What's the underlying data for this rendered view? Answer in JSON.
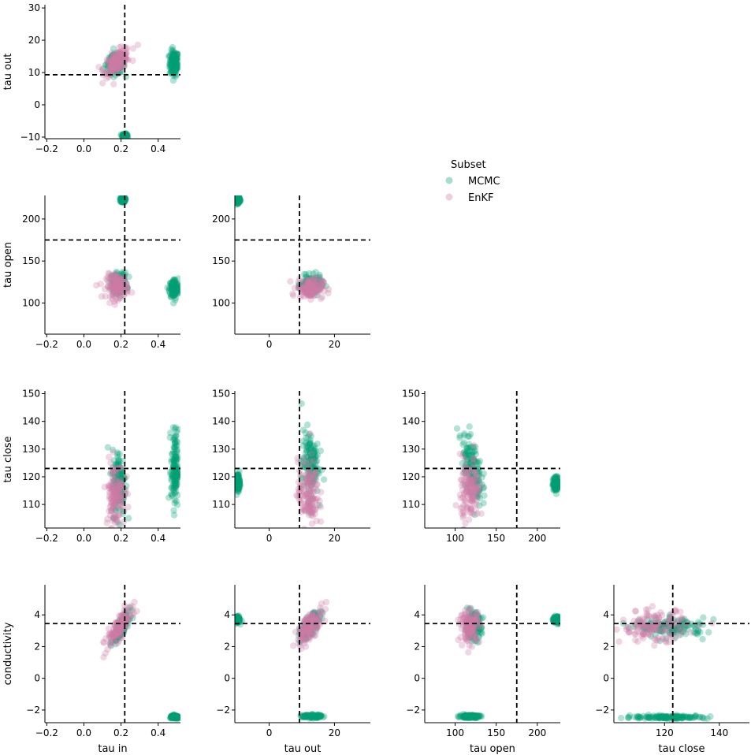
{
  "legend": {
    "title": "Subset",
    "entries": [
      {
        "label": "MCMC",
        "color": "#009E73"
      },
      {
        "label": "EnKF",
        "color": "#CC79A7"
      }
    ],
    "placement": "center"
  },
  "chart_data": [
    {
      "type": "scatter",
      "xlabel": "",
      "ylabel": "tau out",
      "xlim": [
        -0.21,
        0.52
      ],
      "ylim": [
        -10.5,
        31
      ],
      "xticks": [
        -0.2,
        0.0,
        0.2,
        0.4
      ],
      "yticks": [
        -10,
        0,
        10,
        20,
        30
      ],
      "xticklabels": [
        "−0.2",
        "0.0",
        "0.2",
        "0.4"
      ],
      "yticklabels": [
        "−10",
        "0",
        "10",
        "20",
        "30"
      ],
      "ref_x": 0.22,
      "ref_y": 9.3,
      "series": [
        {
          "name": "MCMC",
          "clusters": [
            {
              "cx": 0.485,
              "cy": 12.8,
              "sx": 0.012,
              "sy": 2.0
            },
            {
              "cx": 0.22,
              "cy": -9.6,
              "sx": 0.006,
              "sy": 0.3
            },
            {
              "cx": 0.17,
              "cy": 12.5,
              "sx": 0.025,
              "sy": 1.5
            }
          ]
        },
        {
          "name": "EnKF",
          "clusters": [
            {
              "cx": 0.18,
              "cy": 13.5,
              "sx": 0.035,
              "sy": 2.0,
              "corr": 0.6
            }
          ]
        }
      ]
    },
    {
      "type": "scatter",
      "xlabel": "",
      "ylabel": "tau open",
      "xlim": [
        -0.21,
        0.52
      ],
      "ylim": [
        63,
        228
      ],
      "xticks": [
        -0.2,
        0.0,
        0.2,
        0.4
      ],
      "yticks": [
        100,
        150,
        200
      ],
      "xticklabels": [
        "−0.2",
        "0.0",
        "0.2",
        "0.4"
      ],
      "yticklabels": [
        "100",
        "150",
        "200"
      ],
      "ref_x": 0.22,
      "ref_y": 175,
      "series": [
        {
          "name": "MCMC",
          "clusters": [
            {
              "cx": 0.485,
              "cy": 117,
              "sx": 0.012,
              "sy": 6
            },
            {
              "cx": 0.21,
              "cy": 223,
              "sx": 0.006,
              "sy": 1.5
            },
            {
              "cx": 0.19,
              "cy": 124,
              "sx": 0.02,
              "sy": 6
            }
          ]
        },
        {
          "name": "EnKF",
          "clusters": [
            {
              "cx": 0.18,
              "cy": 120,
              "sx": 0.03,
              "sy": 7
            }
          ]
        }
      ]
    },
    {
      "type": "scatter",
      "xlabel": "",
      "ylabel": "",
      "xlim": [
        -10.5,
        31
      ],
      "ylim": [
        63,
        228
      ],
      "xticks": [
        0,
        20
      ],
      "yticks": [
        100,
        150,
        200
      ],
      "xticklabels": [
        "0",
        "20"
      ],
      "yticklabels": [
        "100",
        "150",
        "200"
      ],
      "ref_x": 9.3,
      "ref_y": 175,
      "series": [
        {
          "name": "MCMC",
          "clusters": [
            {
              "cx": -9.6,
              "cy": 223,
              "sx": 0.3,
              "sy": 2
            },
            {
              "cx": 13,
              "cy": 122,
              "sx": 1.5,
              "sy": 5
            }
          ]
        },
        {
          "name": "EnKF",
          "clusters": [
            {
              "cx": 12.5,
              "cy": 118,
              "sx": 2.0,
              "sy": 6
            }
          ]
        }
      ]
    },
    {
      "type": "scatter",
      "xlabel": "",
      "ylabel": "tau close",
      "xlim": [
        -0.21,
        0.52
      ],
      "ylim": [
        101.5,
        151
      ],
      "xticks": [
        -0.2,
        0.0,
        0.2,
        0.4
      ],
      "yticks": [
        110,
        120,
        130,
        140,
        150
      ],
      "xticklabels": [
        "−0.2",
        "0.0",
        "0.2",
        "0.4"
      ],
      "yticklabels": [
        "110",
        "120",
        "130",
        "140",
        "150"
      ],
      "ref_x": 0.22,
      "ref_y": 123,
      "series": [
        {
          "name": "MCMC",
          "clusters": [
            {
              "cx": 0.49,
              "cy": 123,
              "sx": 0.01,
              "sy": 7
            },
            {
              "cx": 0.19,
              "cy": 118,
              "sx": 0.018,
              "sy": 6
            }
          ]
        },
        {
          "name": "EnKF",
          "clusters": [
            {
              "cx": 0.17,
              "cy": 114,
              "sx": 0.025,
              "sy": 6
            }
          ]
        }
      ]
    },
    {
      "type": "scatter",
      "xlabel": "",
      "ylabel": "",
      "xlim": [
        -10.5,
        31
      ],
      "ylim": [
        101.5,
        151
      ],
      "xticks": [
        0,
        20
      ],
      "yticks": [
        110,
        120,
        130,
        140,
        150
      ],
      "xticklabels": [
        "0",
        "20"
      ],
      "yticklabels": [
        "110",
        "120",
        "130",
        "140",
        "150"
      ],
      "ref_x": 9.3,
      "ref_y": 123,
      "series": [
        {
          "name": "MCMC",
          "clusters": [
            {
              "cx": -9.6,
              "cy": 118,
              "sx": 0.3,
              "sy": 1.5
            },
            {
              "cx": 12.5,
              "cy": 125,
              "sx": 1.3,
              "sy": 6
            }
          ]
        },
        {
          "name": "EnKF",
          "clusters": [
            {
              "cx": 12,
              "cy": 114,
              "sx": 1.6,
              "sy": 6
            }
          ]
        }
      ]
    },
    {
      "type": "scatter",
      "xlabel": "",
      "ylabel": "",
      "xlim": [
        63,
        228
      ],
      "ylim": [
        101.5,
        151
      ],
      "xticks": [
        100,
        150,
        200
      ],
      "yticks": [
        110,
        120,
        130,
        140,
        150
      ],
      "xticklabels": [
        "100",
        "150",
        "200"
      ],
      "yticklabels": [
        "110",
        "120",
        "130",
        "140",
        "150"
      ],
      "ref_x": 175,
      "ref_y": 123,
      "series": [
        {
          "name": "MCMC",
          "clusters": [
            {
              "cx": 223,
              "cy": 117.5,
              "sx": 2,
              "sy": 1.2
            },
            {
              "cx": 120,
              "cy": 124,
              "sx": 6,
              "sy": 6,
              "corr": -0.5
            }
          ]
        },
        {
          "name": "EnKF",
          "clusters": [
            {
              "cx": 118,
              "cy": 115,
              "sx": 6,
              "sy": 6
            }
          ]
        }
      ]
    },
    {
      "type": "scatter",
      "xlabel": "tau in",
      "ylabel": "conductivity",
      "xlim": [
        -0.21,
        0.52
      ],
      "ylim": [
        -2.8,
        5.9
      ],
      "xticks": [
        -0.2,
        0.0,
        0.2,
        0.4
      ],
      "yticks": [
        -2,
        0,
        2,
        4
      ],
      "xticklabels": [
        "−0.2",
        "0.0",
        "0.2",
        "0.4"
      ],
      "yticklabels": [
        "−2",
        "0",
        "2",
        "4"
      ],
      "ref_x": 0.22,
      "ref_y": 3.45,
      "series": [
        {
          "name": "MCMC",
          "clusters": [
            {
              "cx": 0.49,
              "cy": -2.45,
              "sx": 0.012,
              "sy": 0.05
            },
            {
              "cx": 0.2,
              "cy": 3.2,
              "sx": 0.02,
              "sy": 0.4,
              "corr": 0.8
            }
          ]
        },
        {
          "name": "EnKF",
          "clusters": [
            {
              "cx": 0.19,
              "cy": 3.2,
              "sx": 0.035,
              "sy": 0.6,
              "corr": 0.8
            }
          ]
        }
      ]
    },
    {
      "type": "scatter",
      "xlabel": "tau out",
      "ylabel": "",
      "xlim": [
        -10.5,
        31
      ],
      "ylim": [
        -2.8,
        5.9
      ],
      "xticks": [
        0,
        20
      ],
      "yticks": [
        -2,
        0,
        2,
        4
      ],
      "xticklabels": [
        "0",
        "20"
      ],
      "yticklabels": [
        "−2",
        "0",
        "2",
        "4"
      ],
      "ref_x": 9.3,
      "ref_y": 3.45,
      "series": [
        {
          "name": "MCMC",
          "clusters": [
            {
              "cx": -9.6,
              "cy": 3.7,
              "sx": 0.3,
              "sy": 0.1
            },
            {
              "cx": 13,
              "cy": -2.4,
              "sx": 1.5,
              "sy": 0.05
            },
            {
              "cx": 12.5,
              "cy": 3.3,
              "sx": 1.5,
              "sy": 0.4,
              "corr": 0.7
            }
          ]
        },
        {
          "name": "EnKF",
          "clusters": [
            {
              "cx": 12.5,
              "cy": 3.3,
              "sx": 2.0,
              "sy": 0.55,
              "corr": 0.7
            }
          ]
        }
      ]
    },
    {
      "type": "scatter",
      "xlabel": "tau open",
      "ylabel": "",
      "xlim": [
        63,
        228
      ],
      "ylim": [
        -2.8,
        5.9
      ],
      "xticks": [
        100,
        150,
        200
      ],
      "yticks": [
        -2,
        0,
        2,
        4
      ],
      "xticklabels": [
        "100",
        "150",
        "200"
      ],
      "yticklabels": [
        "−2",
        "0",
        "2",
        "4"
      ],
      "ref_x": 175,
      "ref_y": 3.45,
      "series": [
        {
          "name": "MCMC",
          "clusters": [
            {
              "cx": 224,
              "cy": 3.7,
              "sx": 2.5,
              "sy": 0.1
            },
            {
              "cx": 118,
              "cy": -2.4,
              "sx": 6,
              "sy": 0.05
            },
            {
              "cx": 122,
              "cy": 3.3,
              "sx": 5,
              "sy": 0.4
            }
          ]
        },
        {
          "name": "EnKF",
          "clusters": [
            {
              "cx": 118,
              "cy": 3.3,
              "sx": 6,
              "sy": 0.5
            }
          ]
        }
      ]
    },
    {
      "type": "scatter",
      "xlabel": "tau close",
      "ylabel": "",
      "xlim": [
        101.5,
        151
      ],
      "ylim": [
        -2.8,
        5.9
      ],
      "xticks": [
        120,
        140
      ],
      "yticks": [
        -2,
        0,
        2,
        4
      ],
      "xticklabels": [
        "120",
        "140"
      ],
      "yticklabels": [
        "−2",
        "0",
        "2",
        "4"
      ],
      "ref_x": 123,
      "ref_y": 3.45,
      "series": [
        {
          "name": "MCMC",
          "clusters": [
            {
              "cx": 122,
              "cy": -2.45,
              "sx": 7,
              "sy": 0.05
            },
            {
              "cx": 123,
              "cy": 3.2,
              "sx": 6,
              "sy": 0.3
            }
          ]
        },
        {
          "name": "EnKF",
          "clusters": [
            {
              "cx": 116,
              "cy": 3.3,
              "sx": 6,
              "sy": 0.5
            }
          ]
        }
      ]
    }
  ]
}
